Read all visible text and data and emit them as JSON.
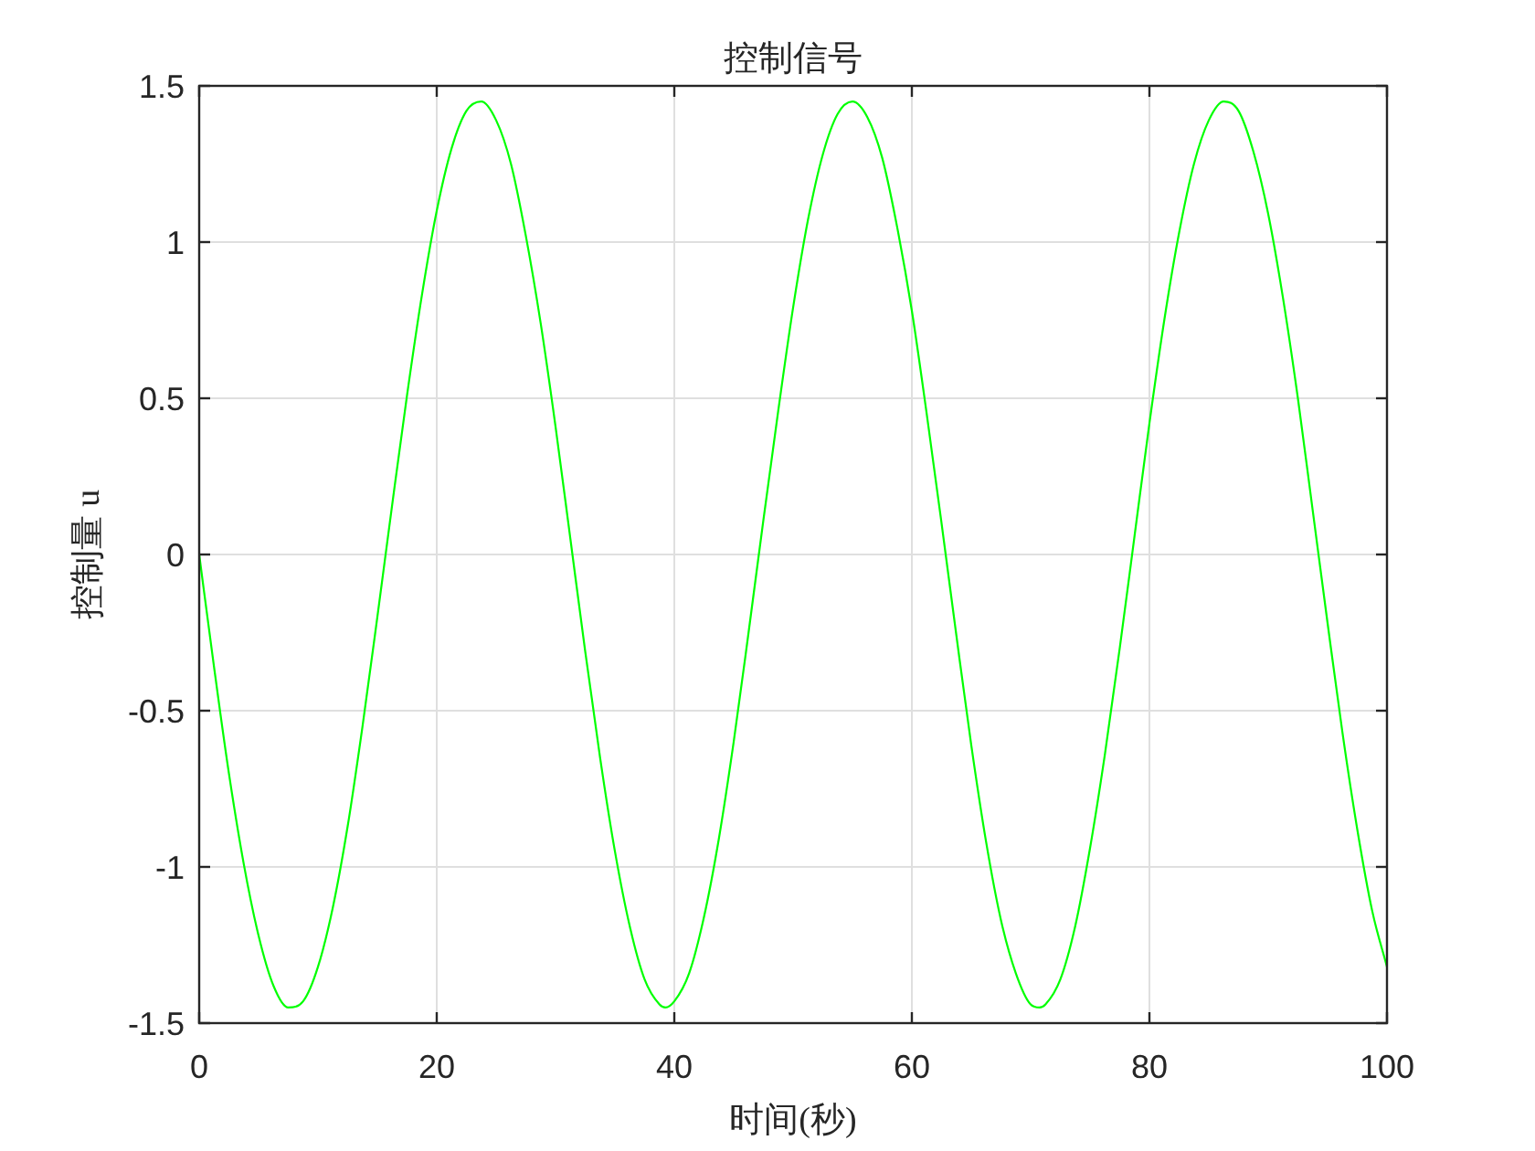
{
  "chart_data": {
    "type": "line",
    "title": "控制信号",
    "xlabel": "时间(秒)",
    "ylabel": "控制量 u",
    "x": [
      0,
      1.25,
      2.5,
      3.75,
      5,
      6.25,
      7.5,
      8.75,
      10,
      11.25,
      12.5,
      13.75,
      15,
      16.25,
      17.5,
      18.75,
      20,
      21.25,
      22.5,
      23.75,
      25,
      26.25,
      27.5,
      28.75,
      30,
      31.25,
      32.5,
      33.75,
      35,
      36.25,
      37.5,
      38.75,
      39.25,
      40,
      41.25,
      42.5,
      43.75,
      45,
      46.25,
      47.5,
      48.75,
      50,
      51.25,
      52.5,
      53.75,
      55,
      56.25,
      57.5,
      58.75,
      60,
      61.25,
      62.5,
      63.75,
      65,
      66.25,
      67.5,
      68.75,
      70,
      70.75,
      71.25,
      72.5,
      73.75,
      75,
      76.25,
      77.5,
      78.75,
      80,
      81.25,
      82.5,
      83.75,
      85,
      86.25,
      87.5,
      88.75,
      90,
      91.25,
      92.5,
      93.75,
      95,
      96.25,
      97.5,
      98.75,
      100
    ],
    "series": [
      {
        "color": "#00ff00",
        "values": [
          0,
          -0.36,
          -0.7,
          -0.99,
          -1.22,
          -1.38,
          -1.45,
          -1.43,
          -1.32,
          -1.13,
          -0.87,
          -0.55,
          -0.2,
          0.16,
          0.51,
          0.83,
          1.1,
          1.3,
          1.42,
          1.45,
          1.39,
          1.25,
          1.02,
          0.74,
          0.41,
          0.05,
          -0.31,
          -0.65,
          -0.95,
          -1.19,
          -1.36,
          -1.44,
          -1.45,
          -1.43,
          -1.34,
          -1.16,
          -0.91,
          -0.6,
          -0.25,
          0.11,
          0.46,
          0.79,
          1.07,
          1.28,
          1.41,
          1.45,
          1.4,
          1.27,
          1.05,
          0.78,
          0.45,
          0.1,
          -0.26,
          -0.61,
          -0.92,
          -1.17,
          -1.34,
          -1.44,
          -1.45,
          -1.44,
          -1.36,
          -1.19,
          -0.94,
          -0.64,
          -0.3,
          0.06,
          0.42,
          0.75,
          1.03,
          1.25,
          1.39,
          1.45,
          1.42,
          1.29,
          1.09,
          0.82,
          0.5,
          0.14,
          -0.22,
          -0.57,
          -0.88,
          -1.14,
          -1.32
        ]
      }
    ],
    "xlim": [
      0,
      100
    ],
    "ylim": [
      -1.5,
      1.5
    ],
    "xticks": [
      0,
      20,
      40,
      60,
      80,
      100
    ],
    "yticks": [
      -1.5,
      -1,
      -0.5,
      0,
      0.5,
      1,
      1.5
    ],
    "grid": true,
    "line_style": "solid"
  }
}
